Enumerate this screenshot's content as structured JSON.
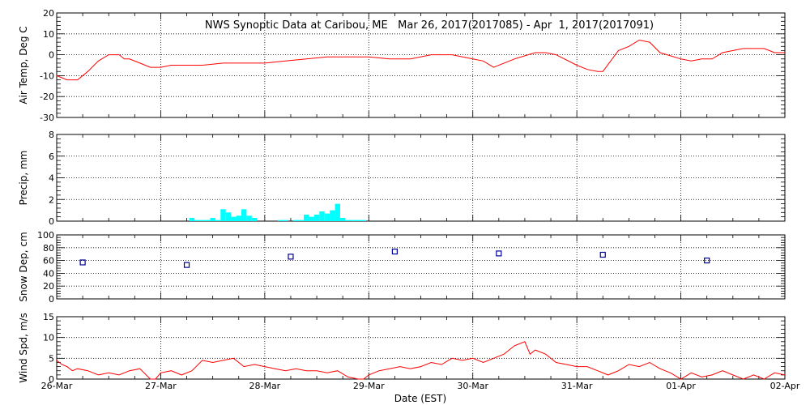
{
  "chart_data": {
    "type": "line",
    "title": "NWS Synoptic Data at Caribou, ME   Mar 26, 2017(2017085) - Apr  1, 2017(2017091)",
    "xlabel": "Date (EST)",
    "x_range_days": [
      "26-Mar",
      "02-Apr"
    ],
    "x_tick_labels": [
      "26-Mar",
      "27-Mar",
      "28-Mar",
      "29-Mar",
      "30-Mar",
      "31-Mar",
      "01-Apr",
      "02-Apr"
    ],
    "grid": true,
    "colors": {
      "temp": "#ff0000",
      "precip": "#00ffff",
      "snow": "#000099",
      "wind": "#ff0000",
      "axis": "#000000"
    },
    "panels": [
      {
        "id": "temp",
        "type": "line",
        "ylabel": "Air Temp, Deg C",
        "ylim": [
          -30,
          20
        ],
        "yticks": [
          -30,
          -20,
          -10,
          0,
          10,
          20
        ],
        "series": {
          "x_days": [
            0.0,
            0.1,
            0.2,
            0.3,
            0.4,
            0.5,
            0.6,
            0.65,
            0.7,
            0.8,
            0.9,
            1.0,
            1.1,
            1.2,
            1.4,
            1.6,
            1.8,
            2.0,
            2.2,
            2.4,
            2.6,
            2.8,
            3.0,
            3.2,
            3.4,
            3.6,
            3.8,
            4.0,
            4.1,
            4.2,
            4.4,
            4.6,
            4.7,
            4.8,
            5.0,
            5.1,
            5.2,
            5.25,
            5.4,
            5.5,
            5.6,
            5.7,
            5.8,
            6.0,
            6.1,
            6.2,
            6.3,
            6.4,
            6.6,
            6.8,
            6.9,
            7.0
          ],
          "values": [
            -10,
            -12,
            -12,
            -8,
            -3,
            0,
            0,
            -2,
            -2,
            -4,
            -6,
            -6,
            -5,
            -5,
            -5,
            -4,
            -4,
            -4,
            -3,
            -2,
            -1,
            -1,
            -1,
            -2,
            -2,
            0,
            0,
            -2,
            -3,
            -6,
            -2,
            1,
            1,
            0,
            -5,
            -7,
            -8,
            -8,
            2,
            4,
            7,
            6,
            1,
            -2,
            -3,
            -2,
            -2,
            1,
            3,
            3,
            1,
            1
          ]
        }
      },
      {
        "id": "precip",
        "type": "bar",
        "ylabel": "Precip, mm",
        "ylim": [
          0,
          8
        ],
        "yticks": [
          0,
          2,
          4,
          6,
          8
        ],
        "bar_width_days": 0.05,
        "series": {
          "x_days": [
            1.3,
            1.35,
            1.4,
            1.45,
            1.5,
            1.55,
            1.6,
            1.65,
            1.7,
            1.75,
            1.8,
            1.85,
            1.9,
            2.15,
            2.2,
            2.3,
            2.35,
            2.4,
            2.45,
            2.5,
            2.55,
            2.6,
            2.65,
            2.7,
            2.75,
            2.8,
            2.85,
            2.9,
            2.95
          ],
          "values": [
            0.3,
            0.1,
            0.1,
            0.1,
            0.3,
            0.1,
            1.1,
            0.8,
            0.4,
            0.5,
            1.1,
            0.5,
            0.3,
            0.1,
            0.1,
            0.1,
            0.1,
            0.6,
            0.4,
            0.6,
            0.9,
            0.7,
            1.0,
            1.6,
            0.3,
            0.1,
            0.1,
            0.1,
            0.1
          ]
        }
      },
      {
        "id": "snow",
        "type": "scatter",
        "ylabel": "Snow Dep, cm",
        "ylim": [
          0,
          100
        ],
        "yticks": [
          0,
          20,
          40,
          60,
          80,
          100
        ],
        "series": {
          "x_days": [
            0.25,
            1.25,
            2.25,
            3.25,
            4.25,
            5.25,
            6.25
          ],
          "values": [
            57,
            53,
            66,
            74,
            71,
            69,
            60
          ]
        }
      },
      {
        "id": "wind",
        "type": "line",
        "ylabel": "Wind Spd, m/s",
        "ylim": [
          0,
          15
        ],
        "yticks": [
          0,
          5,
          10,
          15
        ],
        "series": {
          "x_days": [
            0.0,
            0.05,
            0.1,
            0.15,
            0.2,
            0.3,
            0.4,
            0.5,
            0.6,
            0.7,
            0.8,
            0.9,
            0.95,
            1.0,
            1.1,
            1.2,
            1.3,
            1.4,
            1.5,
            1.6,
            1.7,
            1.8,
            1.9,
            2.0,
            2.1,
            2.2,
            2.3,
            2.4,
            2.5,
            2.6,
            2.7,
            2.8,
            2.9,
            2.95,
            3.0,
            3.1,
            3.2,
            3.3,
            3.4,
            3.5,
            3.6,
            3.7,
            3.8,
            3.9,
            4.0,
            4.1,
            4.2,
            4.3,
            4.4,
            4.5,
            4.55,
            4.6,
            4.7,
            4.8,
            4.9,
            5.0,
            5.1,
            5.2,
            5.3,
            5.4,
            5.5,
            5.6,
            5.7,
            5.8,
            5.9,
            6.0,
            6.1,
            6.2,
            6.3,
            6.4,
            6.5,
            6.6,
            6.7,
            6.8,
            6.9,
            7.0
          ],
          "values": [
            4.5,
            3.5,
            3,
            2,
            2.5,
            2,
            1,
            1.5,
            1,
            2,
            2.5,
            0,
            0,
            1.5,
            2,
            1,
            2,
            4.5,
            4,
            4.5,
            5,
            3,
            3.5,
            3,
            2.5,
            2,
            2.5,
            2,
            2,
            1.5,
            2,
            0.5,
            0,
            0,
            1,
            2,
            2.5,
            3,
            2.5,
            3,
            4,
            3.5,
            5,
            4.5,
            5,
            4,
            5,
            6,
            8,
            9,
            6,
            7,
            6,
            4,
            3.5,
            3,
            3,
            2,
            1,
            2,
            3.5,
            3,
            4,
            2.5,
            1.5,
            0,
            1.5,
            0.5,
            1,
            2,
            1,
            0,
            1,
            0,
            1.5,
            1
          ]
        }
      }
    ]
  }
}
